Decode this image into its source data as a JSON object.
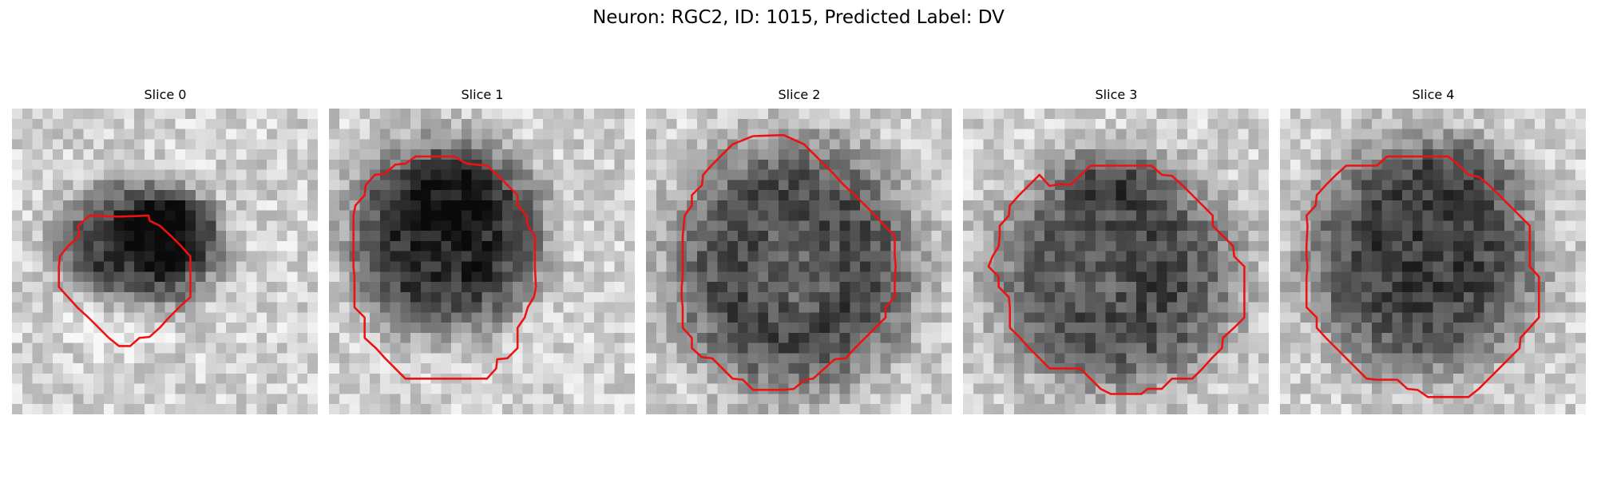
{
  "figure": {
    "title": "Neuron: RGC2, ID: 1015, Predicted Label: DV"
  },
  "panels": [
    {
      "title": "Slice 0",
      "image": "grayscale-microscopy-slice",
      "contour_color": "#ee1111",
      "contour": [
        [
          10.5,
          10.6
        ],
        [
          7.6,
          10.5
        ],
        [
          6.5,
          11.5
        ],
        [
          6.6,
          12.5
        ],
        [
          5.5,
          13.5
        ],
        [
          4.7,
          14.5
        ],
        [
          4.6,
          15.5
        ],
        [
          4.6,
          16.6
        ],
        [
          4.6,
          17.5
        ],
        [
          5.5,
          18.5
        ],
        [
          6.5,
          19.6
        ],
        [
          7.5,
          20.5
        ],
        [
          8.5,
          21.5
        ],
        [
          9.5,
          22.5
        ],
        [
          10.5,
          23.3
        ],
        [
          11.6,
          23.3
        ],
        [
          12.5,
          22.5
        ],
        [
          13.5,
          22.4
        ],
        [
          14.5,
          21.5
        ],
        [
          15.4,
          20.5
        ],
        [
          16.4,
          19.5
        ],
        [
          17.5,
          18.5
        ],
        [
          17.5,
          17.5
        ],
        [
          17.5,
          15.5
        ],
        [
          17.5,
          14.5
        ],
        [
          16.6,
          13.5
        ],
        [
          15.6,
          12.5
        ],
        [
          14.5,
          11.5
        ],
        [
          13.5,
          11.0
        ],
        [
          13.4,
          10.5
        ],
        [
          10.5,
          10.6
        ]
      ]
    },
    {
      "title": "Slice 1",
      "image": "grayscale-microscopy-slice",
      "contour_color": "#ee1111",
      "contour": [
        [
          9.5,
          4.7
        ],
        [
          12.3,
          4.7
        ],
        [
          13.5,
          5.4
        ],
        [
          15.5,
          5.6
        ],
        [
          16.5,
          6.5
        ],
        [
          17.5,
          7.5
        ],
        [
          18.5,
          8.5
        ],
        [
          18.5,
          9.5
        ],
        [
          19.4,
          10.5
        ],
        [
          19.5,
          11.5
        ],
        [
          20.2,
          12.5
        ],
        [
          20.2,
          13.5
        ],
        [
          20.2,
          15.5
        ],
        [
          20.3,
          17.5
        ],
        [
          20.1,
          18.5
        ],
        [
          19.5,
          19.5
        ],
        [
          19.2,
          20.5
        ],
        [
          18.5,
          21.5
        ],
        [
          18.5,
          22.5
        ],
        [
          18.5,
          23.5
        ],
        [
          17.5,
          24.5
        ],
        [
          16.5,
          24.6
        ],
        [
          16.4,
          25.5
        ],
        [
          15.5,
          26.5
        ],
        [
          13.5,
          26.5
        ],
        [
          9.5,
          26.5
        ],
        [
          7.5,
          26.5
        ],
        [
          6.5,
          25.5
        ],
        [
          5.5,
          24.5
        ],
        [
          4.6,
          23.5
        ],
        [
          3.5,
          22.5
        ],
        [
          3.5,
          21.5
        ],
        [
          3.5,
          20.5
        ],
        [
          2.5,
          19.5
        ],
        [
          2.5,
          18.5
        ],
        [
          2.5,
          17.5
        ],
        [
          2.5,
          16.5
        ],
        [
          2.4,
          15.5
        ],
        [
          2.4,
          14.5
        ],
        [
          2.4,
          13.5
        ],
        [
          2.4,
          12.5
        ],
        [
          2.4,
          10.5
        ],
        [
          2.6,
          9.5
        ],
        [
          3.5,
          8.5
        ],
        [
          3.6,
          7.5
        ],
        [
          4.5,
          6.5
        ],
        [
          5.5,
          6.4
        ],
        [
          6.5,
          5.5
        ],
        [
          7.5,
          5.4
        ],
        [
          8.5,
          4.7
        ],
        [
          9.5,
          4.7
        ]
      ]
    },
    {
      "title": "Slice 2",
      "image": "grayscale-microscopy-slice",
      "contour_color": "#ee1111",
      "contour": [
        [
          10.5,
          2.7
        ],
        [
          13.5,
          2.6
        ],
        [
          15.5,
          3.5
        ],
        [
          16.5,
          4.5
        ],
        [
          17.5,
          5.5
        ],
        [
          18.5,
          6.5
        ],
        [
          19.4,
          7.5
        ],
        [
          20.5,
          8.5
        ],
        [
          21.5,
          9.5
        ],
        [
          22.5,
          10.5
        ],
        [
          23.4,
          11.5
        ],
        [
          24.4,
          12.5
        ],
        [
          24.4,
          13.5
        ],
        [
          24.4,
          14.5
        ],
        [
          24.5,
          15.5
        ],
        [
          24.4,
          16.5
        ],
        [
          24.4,
          17.5
        ],
        [
          24.4,
          18.5
        ],
        [
          23.5,
          19.5
        ],
        [
          23.5,
          20.5
        ],
        [
          22.5,
          21.5
        ],
        [
          21.5,
          22.5
        ],
        [
          20.5,
          23.5
        ],
        [
          19.6,
          24.5
        ],
        [
          18.5,
          24.6
        ],
        [
          17.5,
          25.5
        ],
        [
          16.4,
          26.5
        ],
        [
          15.6,
          26.6
        ],
        [
          14.5,
          27.5
        ],
        [
          13.5,
          27.6
        ],
        [
          10.5,
          27.6
        ],
        [
          9.5,
          26.6
        ],
        [
          8.5,
          26.5
        ],
        [
          7.5,
          25.5
        ],
        [
          6.5,
          24.5
        ],
        [
          5.5,
          24.4
        ],
        [
          4.5,
          23.5
        ],
        [
          4.5,
          22.5
        ],
        [
          3.6,
          21.5
        ],
        [
          3.6,
          20.5
        ],
        [
          3.6,
          19.5
        ],
        [
          3.5,
          18.5
        ],
        [
          3.5,
          17.5
        ],
        [
          3.6,
          16.5
        ],
        [
          3.6,
          15.5
        ],
        [
          3.6,
          14.5
        ],
        [
          3.6,
          12.5
        ],
        [
          3.7,
          11.5
        ],
        [
          3.8,
          10.5
        ],
        [
          4.5,
          9.5
        ],
        [
          4.5,
          8.5
        ],
        [
          5.5,
          7.5
        ],
        [
          5.6,
          6.5
        ],
        [
          6.5,
          5.5
        ],
        [
          7.5,
          4.5
        ],
        [
          8.5,
          3.5
        ],
        [
          9.5,
          3.1
        ],
        [
          10.5,
          2.7
        ]
      ]
    },
    {
      "title": "Slice 3",
      "image": "grayscale-microscopy-slice",
      "contour_color": "#ee1111",
      "contour": [
        [
          12.5,
          5.6
        ],
        [
          14.5,
          5.6
        ],
        [
          18.5,
          5.6
        ],
        [
          19.5,
          6.5
        ],
        [
          20.5,
          6.6
        ],
        [
          21.5,
          7.5
        ],
        [
          22.5,
          8.5
        ],
        [
          23.5,
          9.5
        ],
        [
          24.5,
          10.5
        ],
        [
          24.5,
          11.5
        ],
        [
          25.5,
          12.5
        ],
        [
          26.5,
          13.5
        ],
        [
          26.6,
          14.5
        ],
        [
          27.6,
          15.5
        ],
        [
          27.6,
          16.5
        ],
        [
          27.6,
          17.5
        ],
        [
          27.6,
          19.5
        ],
        [
          27.6,
          20.5
        ],
        [
          26.6,
          21.5
        ],
        [
          25.5,
          22.5
        ],
        [
          25.4,
          23.5
        ],
        [
          24.4,
          24.5
        ],
        [
          23.5,
          25.5
        ],
        [
          22.5,
          26.5
        ],
        [
          20.5,
          26.5
        ],
        [
          19.5,
          27.5
        ],
        [
          18.4,
          27.5
        ],
        [
          18.1,
          27.5
        ],
        [
          17.5,
          28.0
        ],
        [
          14.5,
          28.0
        ],
        [
          13.5,
          27.5
        ],
        [
          12.5,
          26.5
        ],
        [
          11.5,
          25.5
        ],
        [
          8.5,
          25.5
        ],
        [
          7.5,
          24.5
        ],
        [
          6.5,
          23.5
        ],
        [
          5.6,
          22.5
        ],
        [
          4.6,
          21.5
        ],
        [
          4.6,
          20.5
        ],
        [
          4.6,
          19.5
        ],
        [
          4.5,
          18.5
        ],
        [
          3.5,
          17.5
        ],
        [
          3.5,
          16.5
        ],
        [
          2.5,
          15.5
        ],
        [
          2.9,
          14.5
        ],
        [
          3.5,
          13.5
        ],
        [
          3.6,
          12.5
        ],
        [
          3.6,
          11.5
        ],
        [
          4.5,
          10.5
        ],
        [
          4.6,
          9.5
        ],
        [
          5.5,
          8.5
        ],
        [
          6.5,
          7.5
        ],
        [
          7.5,
          6.5
        ],
        [
          8.5,
          7.6
        ],
        [
          9.5,
          7.4
        ],
        [
          10.5,
          7.5
        ],
        [
          11.5,
          6.6
        ],
        [
          12.5,
          5.6
        ]
      ]
    },
    {
      "title": "Slice 4",
      "image": "grayscale-microscopy-slice",
      "contour_color": "#ee1111",
      "contour": [
        [
          10.5,
          4.7
        ],
        [
          12.5,
          4.7
        ],
        [
          16.5,
          4.7
        ],
        [
          17.5,
          5.5
        ],
        [
          18.5,
          6.5
        ],
        [
          19.5,
          6.7
        ],
        [
          20.5,
          7.5
        ],
        [
          21.5,
          8.5
        ],
        [
          22.5,
          9.5
        ],
        [
          23.5,
          10.5
        ],
        [
          24.5,
          11.5
        ],
        [
          24.5,
          12.5
        ],
        [
          24.5,
          14.5
        ],
        [
          24.5,
          15.5
        ],
        [
          25.4,
          16.5
        ],
        [
          25.4,
          17.5
        ],
        [
          25.4,
          18.5
        ],
        [
          25.4,
          19.5
        ],
        [
          25.4,
          20.5
        ],
        [
          24.5,
          21.5
        ],
        [
          23.6,
          22.5
        ],
        [
          23.5,
          23.5
        ],
        [
          22.5,
          24.5
        ],
        [
          21.5,
          25.5
        ],
        [
          20.5,
          26.5
        ],
        [
          19.5,
          27.5
        ],
        [
          18.5,
          28.3
        ],
        [
          17.5,
          28.3
        ],
        [
          16.5,
          28.3
        ],
        [
          14.5,
          28.3
        ],
        [
          13.5,
          27.6
        ],
        [
          12.5,
          27.5
        ],
        [
          11.5,
          26.6
        ],
        [
          10.5,
          26.6
        ],
        [
          9.5,
          26.6
        ],
        [
          8.5,
          26.5
        ],
        [
          7.5,
          25.5
        ],
        [
          6.5,
          24.5
        ],
        [
          5.5,
          23.5
        ],
        [
          4.5,
          22.5
        ],
        [
          3.6,
          21.5
        ],
        [
          3.6,
          20.5
        ],
        [
          2.6,
          19.5
        ],
        [
          2.6,
          18.5
        ],
        [
          2.6,
          17.5
        ],
        [
          2.6,
          16.5
        ],
        [
          2.7,
          15.5
        ],
        [
          2.6,
          14.5
        ],
        [
          2.6,
          13.5
        ],
        [
          2.7,
          11.5
        ],
        [
          2.6,
          10.5
        ],
        [
          3.5,
          9.5
        ],
        [
          3.6,
          8.5
        ],
        [
          4.5,
          7.5
        ],
        [
          5.5,
          6.5
        ],
        [
          6.5,
          5.6
        ],
        [
          9.5,
          5.6
        ],
        [
          10.5,
          4.7
        ]
      ]
    }
  ]
}
